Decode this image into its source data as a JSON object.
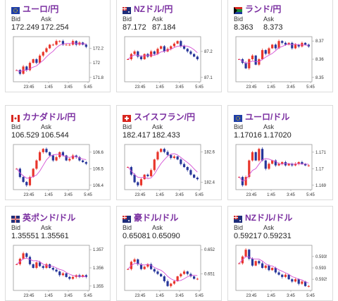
{
  "labels": {
    "bid": "Bid",
    "ask": "Ask"
  },
  "colors": {
    "up": "#e8352b",
    "down": "#27369a",
    "ma": "#d44fd4",
    "title": "#7a2ea0"
  },
  "cards": [
    {
      "pair": "ユーロ/円",
      "bid": "172.249",
      "ask": "172.254",
      "flag": "eu-flag-icon",
      "chart_data": {
        "type": "candlestick",
        "x_ticks": [
          "23:45",
          "1:45",
          "3:45",
          "5:45"
        ],
        "y_ticks": [
          "172.2",
          "172",
          "171.8"
        ],
        "close": [
          171.9,
          171.85,
          171.95,
          171.9,
          172.0,
          172.05,
          172.0,
          172.1,
          172.15,
          172.2,
          172.25,
          172.25,
          172.3,
          172.3,
          172.25,
          172.25,
          172.25,
          172.3,
          172.25,
          172.28,
          172.25,
          172.22
        ]
      }
    },
    {
      "pair": "NZドル/円",
      "bid": "87.172",
      "ask": "87.184",
      "flag": "nz-flag-icon",
      "chart_data": {
        "type": "candlestick",
        "x_ticks": [
          "23:45",
          "1:45",
          "3:45",
          "5:45"
        ],
        "y_ticks": [
          "87.2",
          "87.1"
        ],
        "close": [
          87.17,
          87.19,
          87.2,
          87.18,
          87.17,
          87.19,
          87.18,
          87.2,
          87.19,
          87.21,
          87.22,
          87.2,
          87.21,
          87.22,
          87.23,
          87.24,
          87.22,
          87.21,
          87.2,
          87.19,
          87.18,
          87.17
        ]
      }
    },
    {
      "pair": "ランド/円",
      "bid": "8.363",
      "ask": "8.373",
      "flag": "za-flag-icon",
      "chart_data": {
        "type": "candlestick",
        "x_ticks": [
          "23:45",
          "1:45",
          "3:45",
          "5:45"
        ],
        "y_ticks": [
          "8.37",
          "8.36",
          "8.35"
        ],
        "close": [
          8.36,
          8.358,
          8.355,
          8.36,
          8.362,
          8.357,
          8.36,
          8.365,
          8.363,
          8.366,
          8.368,
          8.366,
          8.37,
          8.369,
          8.368,
          8.369,
          8.366,
          8.368,
          8.367,
          8.369,
          8.368,
          8.367
        ]
      }
    },
    {
      "pair": "カナダドル/円",
      "bid": "106.529",
      "ask": "106.544",
      "flag": "ca-flag-icon",
      "chart_data": {
        "type": "candlestick",
        "x_ticks": [
          "23:45",
          "1:45",
          "3:45",
          "5:45"
        ],
        "y_ticks": [
          "106.6",
          "106.5",
          "106.4"
        ],
        "close": [
          106.5,
          106.45,
          106.42,
          106.4,
          106.45,
          106.5,
          106.55,
          106.6,
          106.62,
          106.6,
          106.58,
          106.55,
          106.57,
          106.6,
          106.58,
          106.55,
          106.56,
          106.58,
          106.57,
          106.55,
          106.54,
          106.53
        ]
      }
    },
    {
      "pair": "スイスフラン/円",
      "bid": "182.417",
      "ask": "182.433",
      "flag": "ch-flag-icon",
      "chart_data": {
        "type": "candlestick",
        "x_ticks": [
          "23:45",
          "1:45",
          "3:45",
          "5:45"
        ],
        "y_ticks": [
          "182.6",
          "182.4"
        ],
        "close": [
          182.5,
          182.45,
          182.4,
          182.38,
          182.42,
          182.45,
          182.44,
          182.48,
          182.55,
          182.6,
          182.62,
          182.6,
          182.58,
          182.56,
          182.57,
          182.55,
          182.52,
          182.5,
          182.48,
          182.45,
          182.43,
          182.42
        ]
      }
    },
    {
      "pair": "ユーロ/ドル",
      "bid": "1.17016",
      "ask": "1.17020",
      "flag": "eu-flag-icon",
      "chart_data": {
        "type": "candlestick",
        "x_ticks": [
          "23:45",
          "1:45",
          "3:45",
          "5:45"
        ],
        "y_ticks": [
          "1.171",
          "1.17",
          "1.169"
        ],
        "close": [
          1.1695,
          1.169,
          1.1695,
          1.1705,
          1.171,
          1.1705,
          1.1712,
          1.1705,
          1.17,
          1.1703,
          1.1705,
          1.1702,
          1.1703,
          1.1704,
          1.1702,
          1.1703,
          1.1702,
          1.1703,
          1.1704,
          1.1703,
          1.1702,
          1.1702
        ]
      }
    },
    {
      "pair": "英ポンド/ドル",
      "bid": "1.35551",
      "ask": "1.35561",
      "flag": "gb-flag-icon",
      "chart_data": {
        "type": "candlestick",
        "x_ticks": [
          "23:45",
          "1:45",
          "3:45",
          "5:45"
        ],
        "y_ticks": [
          "1.357",
          "1.356",
          "1.355"
        ],
        "close": [
          1.3562,
          1.3565,
          1.3568,
          1.3566,
          1.3562,
          1.356,
          1.3563,
          1.3561,
          1.356,
          1.3562,
          1.356,
          1.3559,
          1.3558,
          1.3556,
          1.3557,
          1.3555,
          1.3554,
          1.3555,
          1.3556,
          1.3555,
          1.3556,
          1.3555
        ]
      }
    },
    {
      "pair": "豪ドル/ドル",
      "bid": "0.65081",
      "ask": "0.65090",
      "flag": "au-flag-icon",
      "chart_data": {
        "type": "candlestick",
        "x_ticks": [
          "23:45",
          "1:45",
          "3:45",
          "5:45"
        ],
        "y_ticks": [
          "0.652",
          "0.651"
        ],
        "close": [
          0.6512,
          0.6515,
          0.6516,
          0.6514,
          0.6512,
          0.6513,
          0.6514,
          0.6512,
          0.6511,
          0.651,
          0.6509,
          0.6507,
          0.6505,
          0.6506,
          0.6507,
          0.6509,
          0.651,
          0.6511,
          0.651,
          0.6509,
          0.6508,
          0.6508
        ]
      }
    },
    {
      "pair": "NZドル/ドル",
      "bid": "0.59217",
      "ask": "0.59231",
      "flag": "nz-flag-icon",
      "chart_data": {
        "type": "candlestick",
        "x_ticks": [
          "23:45",
          "1:45",
          "3:45",
          "5:45"
        ],
        "y_ticks": [
          "0.5935",
          "0.593",
          "0.5925"
        ],
        "close": [
          0.5932,
          0.5935,
          0.5938,
          0.5934,
          0.5931,
          0.5933,
          0.5932,
          0.593,
          0.5931,
          0.5929,
          0.593,
          0.5928,
          0.5927,
          0.5926,
          0.5927,
          0.5925,
          0.5924,
          0.5925,
          0.5923,
          0.5924,
          0.5922,
          0.5922
        ]
      }
    }
  ]
}
